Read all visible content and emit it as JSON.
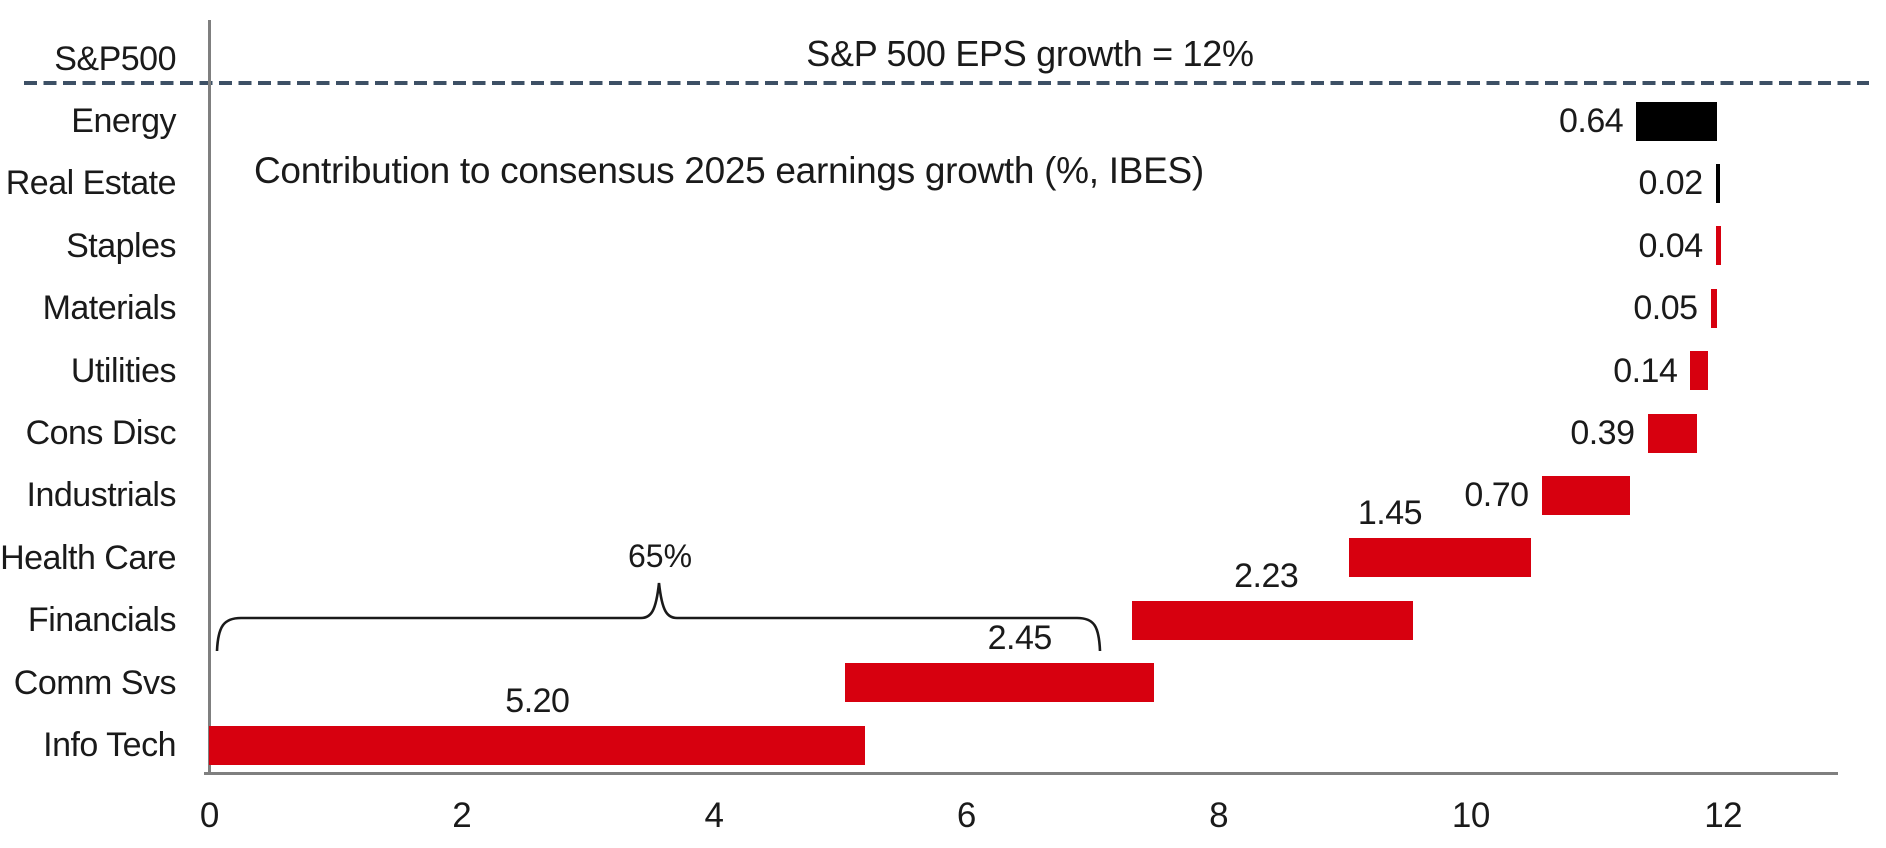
{
  "title": "Contribution to consensus 2025 earnings growth (%, IBES)",
  "top_annotation": "S&P 500 EPS growth = 12%",
  "bracket": {
    "label": "65%",
    "from": 0.07,
    "to": 7.06
  },
  "colors": {
    "positive_bar": "#d7000f",
    "negative_bar": "#000000",
    "dashed_line": "#3d5065",
    "axis_line": "#7f7f7f",
    "text": "#1a1a1a",
    "background": "#ffffff"
  },
  "chart_data": {
    "type": "bar",
    "variant": "horizontal-waterfall",
    "title": "Contribution to consensus 2025 earnings growth (%, IBES)",
    "total_row_label": "S&P500",
    "total_annotation": "S&P 500 EPS growth = 12%",
    "total_value_pct": 12,
    "x_axis": {
      "min": 0,
      "max": 13.3,
      "ticks": [
        0,
        2,
        4,
        6,
        8,
        10,
        12
      ]
    },
    "grid": false,
    "categories": [
      "S&P500",
      "Energy",
      "Real Estate",
      "Staples",
      "Materials",
      "Utilities",
      "Cons Disc",
      "Industrials",
      "Health Care",
      "Financials",
      "Comm Svs",
      "Info Tech"
    ],
    "bars": [
      {
        "category": "Energy",
        "label": "0.64",
        "value": 0.64,
        "start": 11.31,
        "end": 11.95,
        "color": "black",
        "label_side": "left",
        "label_dx": 0
      },
      {
        "category": "Real Estate",
        "label": "0.02",
        "value": 0.02,
        "start": 11.94,
        "end": 11.96,
        "color": "black",
        "label_side": "left",
        "label_dx": 0
      },
      {
        "category": "Staples",
        "label": "0.04",
        "value": 0.04,
        "start": 11.94,
        "end": 11.98,
        "color": "red",
        "label_side": "left",
        "label_dx": 0
      },
      {
        "category": "Materials",
        "label": "0.05",
        "value": 0.05,
        "start": 11.9,
        "end": 11.95,
        "color": "red",
        "label_side": "left",
        "label_dx": 0
      },
      {
        "category": "Utilities",
        "label": "0.14",
        "value": 0.14,
        "start": 11.74,
        "end": 11.88,
        "color": "red",
        "label_side": "left",
        "label_dx": 0
      },
      {
        "category": "Cons Disc",
        "label": "0.39",
        "value": 0.39,
        "start": 11.4,
        "end": 11.79,
        "color": "red",
        "label_side": "left",
        "label_dx": 0
      },
      {
        "category": "Industrials",
        "label": "0.70",
        "value": 0.7,
        "start": 10.56,
        "end": 11.26,
        "color": "red",
        "label_side": "left",
        "label_dx": 0
      },
      {
        "category": "Health Care",
        "label": "1.45",
        "value": 1.45,
        "start": 9.03,
        "end": 10.48,
        "color": "red",
        "label_side": "above",
        "label_dx": -50
      },
      {
        "category": "Financials",
        "label": "2.23",
        "value": 2.23,
        "start": 7.31,
        "end": 9.54,
        "color": "red",
        "label_side": "above",
        "label_dx": -6
      },
      {
        "category": "Comm Svs",
        "label": "2.45",
        "value": 2.45,
        "start": 5.04,
        "end": 7.49,
        "color": "red",
        "label_side": "above",
        "label_dx": 20
      },
      {
        "category": "Info Tech",
        "label": "5.20",
        "value": 5.2,
        "start": 0.0,
        "end": 5.2,
        "color": "red",
        "label_side": "above",
        "label_dx": 0
      }
    ]
  }
}
